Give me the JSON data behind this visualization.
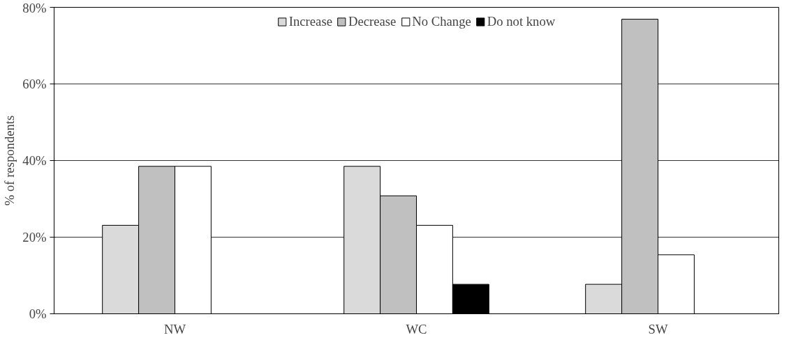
{
  "chart_data": {
    "type": "bar",
    "ylabel": "% of respondents",
    "categories": [
      "NW",
      "WC",
      "SW"
    ],
    "series": [
      {
        "name": "Increase",
        "color": "#dadada",
        "values": [
          23.1,
          38.5,
          7.7
        ]
      },
      {
        "name": "Decrease",
        "color": "#c0c0c0",
        "values": [
          38.5,
          30.8,
          76.9
        ]
      },
      {
        "name": "No Change",
        "color": "#ffffff",
        "values": [
          38.5,
          23.1,
          15.4
        ]
      },
      {
        "name": "Do not know",
        "color": "#000000",
        "values": [
          null,
          7.7,
          null
        ]
      }
    ],
    "ylim": [
      0,
      80
    ],
    "yticks": [
      {
        "value": 0,
        "label": "0%"
      },
      {
        "value": 20,
        "label": "20%"
      },
      {
        "value": 40,
        "label": "40%"
      },
      {
        "value": 60,
        "label": "60%"
      },
      {
        "value": 80,
        "label": "80%"
      }
    ],
    "grid": "y",
    "legend": "top"
  }
}
